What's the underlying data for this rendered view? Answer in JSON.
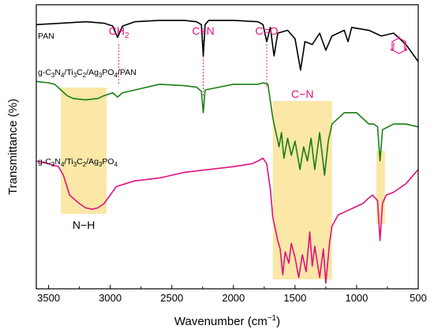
{
  "chart_data": {
    "type": "line",
    "title": "",
    "xlabel": "Wavenumber (cm",
    "xlabel_sup": "−1",
    "xlabel_end": ")",
    "ylabel": "Transmittance (%)",
    "xlim": [
      3600,
      500
    ],
    "x_reversed": true,
    "x_ticks": [
      3500,
      3000,
      2500,
      2000,
      1500,
      1000,
      500
    ],
    "y_ticks_shown": false,
    "grid": false,
    "legend": "none",
    "series": [
      {
        "name": "PAN",
        "color": "#000000",
        "points": [
          [
            3600,
            0.93
          ],
          [
            3400,
            0.935
          ],
          [
            3200,
            0.94
          ],
          [
            3050,
            0.935
          ],
          [
            2980,
            0.925
          ],
          [
            2940,
            0.885
          ],
          [
            2900,
            0.925
          ],
          [
            2800,
            0.94
          ],
          [
            2600,
            0.945
          ],
          [
            2400,
            0.945
          ],
          [
            2300,
            0.94
          ],
          [
            2260,
            0.93
          ],
          [
            2245,
            0.82
          ],
          [
            2230,
            0.93
          ],
          [
            2200,
            0.945
          ],
          [
            2000,
            0.945
          ],
          [
            1800,
            0.94
          ],
          [
            1760,
            0.93
          ],
          [
            1730,
            0.87
          ],
          [
            1700,
            0.92
          ],
          [
            1670,
            0.82
          ],
          [
            1640,
            0.9
          ],
          [
            1560,
            0.91
          ],
          [
            1500,
            0.88
          ],
          [
            1455,
            0.77
          ],
          [
            1420,
            0.87
          ],
          [
            1360,
            0.86
          ],
          [
            1300,
            0.9
          ],
          [
            1250,
            0.84
          ],
          [
            1200,
            0.89
          ],
          [
            1100,
            0.91
          ],
          [
            1070,
            0.87
          ],
          [
            1040,
            0.92
          ],
          [
            900,
            0.91
          ],
          [
            800,
            0.89
          ],
          [
            700,
            0.9
          ],
          [
            600,
            0.86
          ],
          [
            500,
            0.8
          ]
        ]
      },
      {
        "name": "g-C₃N₄/Ti₃C₂/Ag₃PO₄/PAN",
        "color": "#1a7f14",
        "points": [
          [
            3600,
            0.73
          ],
          [
            3500,
            0.725
          ],
          [
            3450,
            0.72
          ],
          [
            3400,
            0.7
          ],
          [
            3350,
            0.68
          ],
          [
            3300,
            0.67
          ],
          [
            3200,
            0.665
          ],
          [
            3100,
            0.67
          ],
          [
            3050,
            0.68
          ],
          [
            2980,
            0.69
          ],
          [
            2940,
            0.675
          ],
          [
            2900,
            0.69
          ],
          [
            2800,
            0.7
          ],
          [
            2600,
            0.72
          ],
          [
            2400,
            0.715
          ],
          [
            2300,
            0.71
          ],
          [
            2260,
            0.695
          ],
          [
            2245,
            0.62
          ],
          [
            2230,
            0.7
          ],
          [
            2000,
            0.72
          ],
          [
            1800,
            0.72
          ],
          [
            1760,
            0.725
          ],
          [
            1720,
            0.72
          ],
          [
            1680,
            0.6
          ],
          [
            1660,
            0.56
          ],
          [
            1630,
            0.5
          ],
          [
            1610,
            0.55
          ],
          [
            1590,
            0.46
          ],
          [
            1560,
            0.53
          ],
          [
            1530,
            0.47
          ],
          [
            1500,
            0.52
          ],
          [
            1460,
            0.42
          ],
          [
            1430,
            0.5
          ],
          [
            1400,
            0.45
          ],
          [
            1370,
            0.53
          ],
          [
            1340,
            0.42
          ],
          [
            1300,
            0.55
          ],
          [
            1260,
            0.4
          ],
          [
            1230,
            0.52
          ],
          [
            1200,
            0.58
          ],
          [
            1100,
            0.62
          ],
          [
            1000,
            0.62
          ],
          [
            950,
            0.6
          ],
          [
            900,
            0.58
          ],
          [
            860,
            0.58
          ],
          [
            830,
            0.57
          ],
          [
            810,
            0.45
          ],
          [
            790,
            0.56
          ],
          [
            700,
            0.58
          ],
          [
            600,
            0.58
          ],
          [
            500,
            0.57
          ]
        ]
      },
      {
        "name": "g-C₃N₄/Ti₃C₂/Ag₃PO₄",
        "color": "#e0117f",
        "points": [
          [
            3600,
            0.45
          ],
          [
            3500,
            0.44
          ],
          [
            3420,
            0.43
          ],
          [
            3380,
            0.4
          ],
          [
            3330,
            0.33
          ],
          [
            3250,
            0.3
          ],
          [
            3200,
            0.285
          ],
          [
            3150,
            0.28
          ],
          [
            3100,
            0.285
          ],
          [
            3050,
            0.3
          ],
          [
            3000,
            0.33
          ],
          [
            2950,
            0.36
          ],
          [
            2800,
            0.38
          ],
          [
            2600,
            0.39
          ],
          [
            2400,
            0.41
          ],
          [
            2200,
            0.42
          ],
          [
            2000,
            0.43
          ],
          [
            1850,
            0.44
          ],
          [
            1800,
            0.45
          ],
          [
            1760,
            0.46
          ],
          [
            1730,
            0.44
          ],
          [
            1700,
            0.35
          ],
          [
            1680,
            0.25
          ],
          [
            1660,
            0.21
          ],
          [
            1640,
            0.17
          ],
          [
            1620,
            0.14
          ],
          [
            1600,
            0.05
          ],
          [
            1580,
            0.13
          ],
          [
            1550,
            0.09
          ],
          [
            1530,
            0.16
          ],
          [
            1500,
            0.11
          ],
          [
            1470,
            0.04
          ],
          [
            1440,
            0.12
          ],
          [
            1410,
            0.06
          ],
          [
            1380,
            0.2
          ],
          [
            1360,
            0.08
          ],
          [
            1340,
            0.15
          ],
          [
            1300,
            0.04
          ],
          [
            1270,
            0.14
          ],
          [
            1250,
            0.02
          ],
          [
            1220,
            0.16
          ],
          [
            1200,
            0.22
          ],
          [
            1150,
            0.26
          ],
          [
            1100,
            0.27
          ],
          [
            1000,
            0.29
          ],
          [
            950,
            0.3
          ],
          [
            900,
            0.32
          ],
          [
            870,
            0.33
          ],
          [
            850,
            0.32
          ],
          [
            830,
            0.31
          ],
          [
            810,
            0.17
          ],
          [
            790,
            0.3
          ],
          [
            760,
            0.33
          ],
          [
            700,
            0.34
          ],
          [
            600,
            0.37
          ],
          [
            500,
            0.42
          ]
        ]
      }
    ],
    "highlight_bands": [
      {
        "from": 3400,
        "to": 3030,
        "label": "N−H",
        "color": "#fbe7a6"
      },
      {
        "from": 1680,
        "to": 1200,
        "label": "C−N",
        "color": "#fbe7a6"
      },
      {
        "from": 840,
        "to": 770,
        "label": "",
        "color": "#fbe7a6"
      }
    ],
    "annotations": [
      {
        "at": 2930,
        "label": "CH",
        "sub": "2",
        "color": "#e0117f"
      },
      {
        "at": 2245,
        "label": "C≡N",
        "sub": "",
        "color": "#e0117f"
      },
      {
        "at": 1730,
        "label": "C=O",
        "sub": "",
        "color": "#e0117f"
      },
      {
        "at": 810,
        "label": "",
        "sub": "",
        "icon": "triazine-ring-icon",
        "color": "#e0117f"
      }
    ],
    "series_labels": [
      {
        "parts": [
          [
            "PAN",
            ""
          ]
        ]
      },
      {
        "parts": [
          [
            "g-C",
            ""
          ],
          [
            "3",
            "sub"
          ],
          [
            "N",
            ""
          ],
          [
            "4",
            "sub"
          ],
          [
            "/Ti",
            ""
          ],
          [
            "3",
            "sub"
          ],
          [
            "C",
            ""
          ],
          [
            "2",
            "sub"
          ],
          [
            "/Ag",
            ""
          ],
          [
            "3",
            "sub"
          ],
          [
            "PO",
            ""
          ],
          [
            "4",
            "sub"
          ],
          [
            "/PAN",
            ""
          ]
        ]
      },
      {
        "parts": [
          [
            "g-C",
            ""
          ],
          [
            "3",
            "sub"
          ],
          [
            "N",
            ""
          ],
          [
            "4",
            "sub"
          ],
          [
            "/Ti",
            ""
          ],
          [
            "3",
            "sub"
          ],
          [
            "C",
            ""
          ],
          [
            "2",
            "sub"
          ],
          [
            "/Ag",
            ""
          ],
          [
            "3",
            "sub"
          ],
          [
            "PO",
            ""
          ],
          [
            "4",
            "sub"
          ]
        ]
      }
    ]
  }
}
